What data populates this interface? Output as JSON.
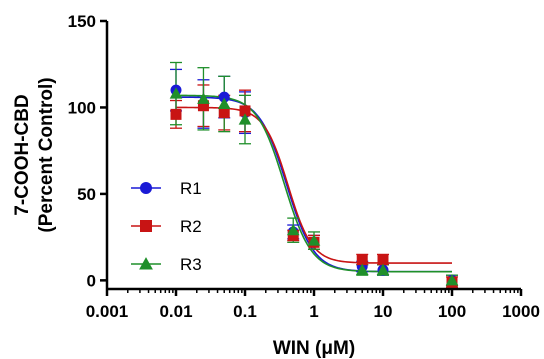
{
  "chart_data": {
    "type": "scatter",
    "xscale": "log",
    "xlim": [
      0.001,
      1000
    ],
    "ylim": [
      -5,
      150
    ],
    "xticks": [
      {
        "value": 0.001,
        "label": "0.001"
      },
      {
        "value": 0.01,
        "label": "0.01"
      },
      {
        "value": 0.1,
        "label": "0.1"
      },
      {
        "value": 1,
        "label": "1"
      },
      {
        "value": 10,
        "label": "10"
      },
      {
        "value": 100,
        "label": "100"
      },
      {
        "value": 1000,
        "label": "1000"
      }
    ],
    "yticks": [
      {
        "value": 0,
        "label": "0"
      },
      {
        "value": 50,
        "label": "50"
      },
      {
        "value": 100,
        "label": "100"
      },
      {
        "value": 150,
        "label": "150"
      }
    ],
    "xlabel": "WIN (μM)",
    "ylabel_line1": "7-COOH-CBD",
    "ylabel_line2": "(Percent Control)",
    "grid": false,
    "legend_position": "center-left",
    "series": [
      {
        "name": "R1",
        "color": "#1a1ad6",
        "marker": "circle",
        "x": [
          0.01,
          0.025,
          0.05,
          0.1,
          0.5,
          1,
          5,
          10,
          100
        ],
        "y": [
          110,
          102,
          106,
          97,
          28,
          22,
          8,
          6,
          0
        ],
        "err": [
          12,
          14,
          12,
          12,
          4,
          4,
          3,
          3,
          3
        ],
        "fit": {
          "top": 106,
          "bottom": 5,
          "ec50": 0.4,
          "hill": 2.2
        }
      },
      {
        "name": "R2",
        "color": "#c81414",
        "marker": "square",
        "x": [
          0.01,
          0.025,
          0.05,
          0.1,
          0.5,
          1,
          5,
          10,
          100
        ],
        "y": [
          96,
          101,
          97,
          98,
          26,
          22,
          12,
          12,
          -1
        ],
        "err": [
          8,
          12,
          10,
          12,
          3,
          4,
          3,
          3,
          3
        ],
        "fit": {
          "top": 100,
          "bottom": 10,
          "ec50": 0.42,
          "hill": 2.5
        }
      },
      {
        "name": "R3",
        "color": "#1f8f2a",
        "marker": "triangle",
        "x": [
          0.01,
          0.025,
          0.05,
          0.1,
          0.5,
          1,
          5,
          10,
          100
        ],
        "y": [
          108,
          105,
          102,
          93,
          29,
          23,
          6,
          6,
          0
        ],
        "err": [
          18,
          18,
          16,
          14,
          7,
          5,
          3,
          3,
          3
        ],
        "fit": {
          "top": 107,
          "bottom": 5,
          "ec50": 0.37,
          "hill": 2.2
        }
      }
    ]
  }
}
